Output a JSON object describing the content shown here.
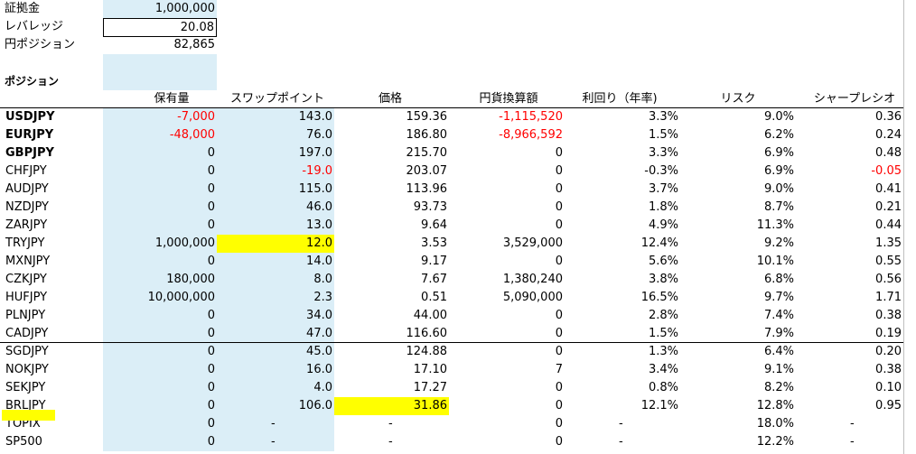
{
  "summary": {
    "margin_label": "証拠金",
    "margin_value": "1,000,000",
    "leverage_label": "レバレッジ",
    "leverage_value": "20.08",
    "yen_position_label": "円ポジション",
    "yen_position_value": "82,865"
  },
  "section_title": "ポジション",
  "columns": [
    "保有量",
    "スワップポイント",
    "価格",
    "円貨換算額",
    "利回り（年率)",
    "リスク",
    "シャープレシオ"
  ],
  "rows": [
    {
      "name": "USDJPY",
      "qty": "-7,000",
      "swap": "143.0",
      "price": "159.36",
      "yen": "-1,115,520",
      "yield": "3.3%",
      "risk": "9.0%",
      "sharpe": "0.36"
    },
    {
      "name": "EURJPY",
      "qty": "-48,000",
      "swap": "76.0",
      "price": "186.80",
      "yen": "-8,966,592",
      "yield": "1.5%",
      "risk": "6.2%",
      "sharpe": "0.24"
    },
    {
      "name": "GBPJPY",
      "qty": "0",
      "swap": "197.0",
      "price": "215.70",
      "yen": "0",
      "yield": "3.3%",
      "risk": "6.9%",
      "sharpe": "0.48"
    },
    {
      "name": "CHFJPY",
      "qty": "0",
      "swap": "-19.0",
      "price": "203.07",
      "yen": "0",
      "yield": "-0.3%",
      "risk": "6.9%",
      "sharpe": "-0.05"
    },
    {
      "name": "AUDJPY",
      "qty": "0",
      "swap": "115.0",
      "price": "113.96",
      "yen": "0",
      "yield": "3.7%",
      "risk": "9.0%",
      "sharpe": "0.41"
    },
    {
      "name": "NZDJPY",
      "qty": "0",
      "swap": "46.0",
      "price": "93.73",
      "yen": "0",
      "yield": "1.8%",
      "risk": "8.7%",
      "sharpe": "0.21"
    },
    {
      "name": "ZARJPY",
      "qty": "0",
      "swap": "13.0",
      "price": "9.64",
      "yen": "0",
      "yield": "4.9%",
      "risk": "11.3%",
      "sharpe": "0.44"
    },
    {
      "name": "TRYJPY",
      "qty": "1,000,000",
      "swap": "12.0",
      "price": "3.53",
      "yen": "3,529,000",
      "yield": "12.4%",
      "risk": "9.2%",
      "sharpe": "1.35"
    },
    {
      "name": "MXNJPY",
      "qty": "0",
      "swap": "14.0",
      "price": "9.17",
      "yen": "0",
      "yield": "5.6%",
      "risk": "10.1%",
      "sharpe": "0.55"
    },
    {
      "name": "CZKJPY",
      "qty": "180,000",
      "swap": "8.0",
      "price": "7.67",
      "yen": "1,380,240",
      "yield": "3.8%",
      "risk": "6.8%",
      "sharpe": "0.56"
    },
    {
      "name": "HUFJPY",
      "qty": "10,000,000",
      "swap": "2.3",
      "price": "0.51",
      "yen": "5,090,000",
      "yield": "16.5%",
      "risk": "9.7%",
      "sharpe": "1.71"
    },
    {
      "name": "PLNJPY",
      "qty": "0",
      "swap": "34.0",
      "price": "44.00",
      "yen": "0",
      "yield": "2.8%",
      "risk": "7.4%",
      "sharpe": "0.38"
    },
    {
      "name": "CADJPY",
      "qty": "0",
      "swap": "47.0",
      "price": "116.60",
      "yen": "0",
      "yield": "1.5%",
      "risk": "7.9%",
      "sharpe": "0.19"
    },
    {
      "name": "SGDJPY",
      "qty": "0",
      "swap": "45.0",
      "price": "124.88",
      "yen": "0",
      "yield": "1.3%",
      "risk": "6.4%",
      "sharpe": "0.20"
    },
    {
      "name": "NOKJPY",
      "qty": "0",
      "swap": "16.0",
      "price": "17.10",
      "yen": "7",
      "yield": "3.4%",
      "risk": "9.1%",
      "sharpe": "0.38"
    },
    {
      "name": "SEKJPY",
      "qty": "0",
      "swap": "4.0",
      "price": "17.27",
      "yen": "0",
      "yield": "0.8%",
      "risk": "8.2%",
      "sharpe": "0.10"
    },
    {
      "name": "BRLJPY",
      "qty": "0",
      "swap": "106.0",
      "price": "31.86",
      "yen": "0",
      "yield": "12.1%",
      "risk": "12.8%",
      "sharpe": "0.95"
    },
    {
      "name": "TOPIX",
      "qty": "0",
      "swap": "-",
      "price": "-",
      "yen": "0",
      "yield": "-",
      "risk": "18.0%",
      "sharpe": "-"
    },
    {
      "name": "SP500",
      "qty": "0",
      "swap": "-",
      "price": "-",
      "yen": "0",
      "yield": "-",
      "risk": "12.2%",
      "sharpe": "-"
    }
  ],
  "colors": {
    "input_fill": "#dbeef7",
    "highlight": "#ffff00",
    "negative": "#ff0000"
  }
}
